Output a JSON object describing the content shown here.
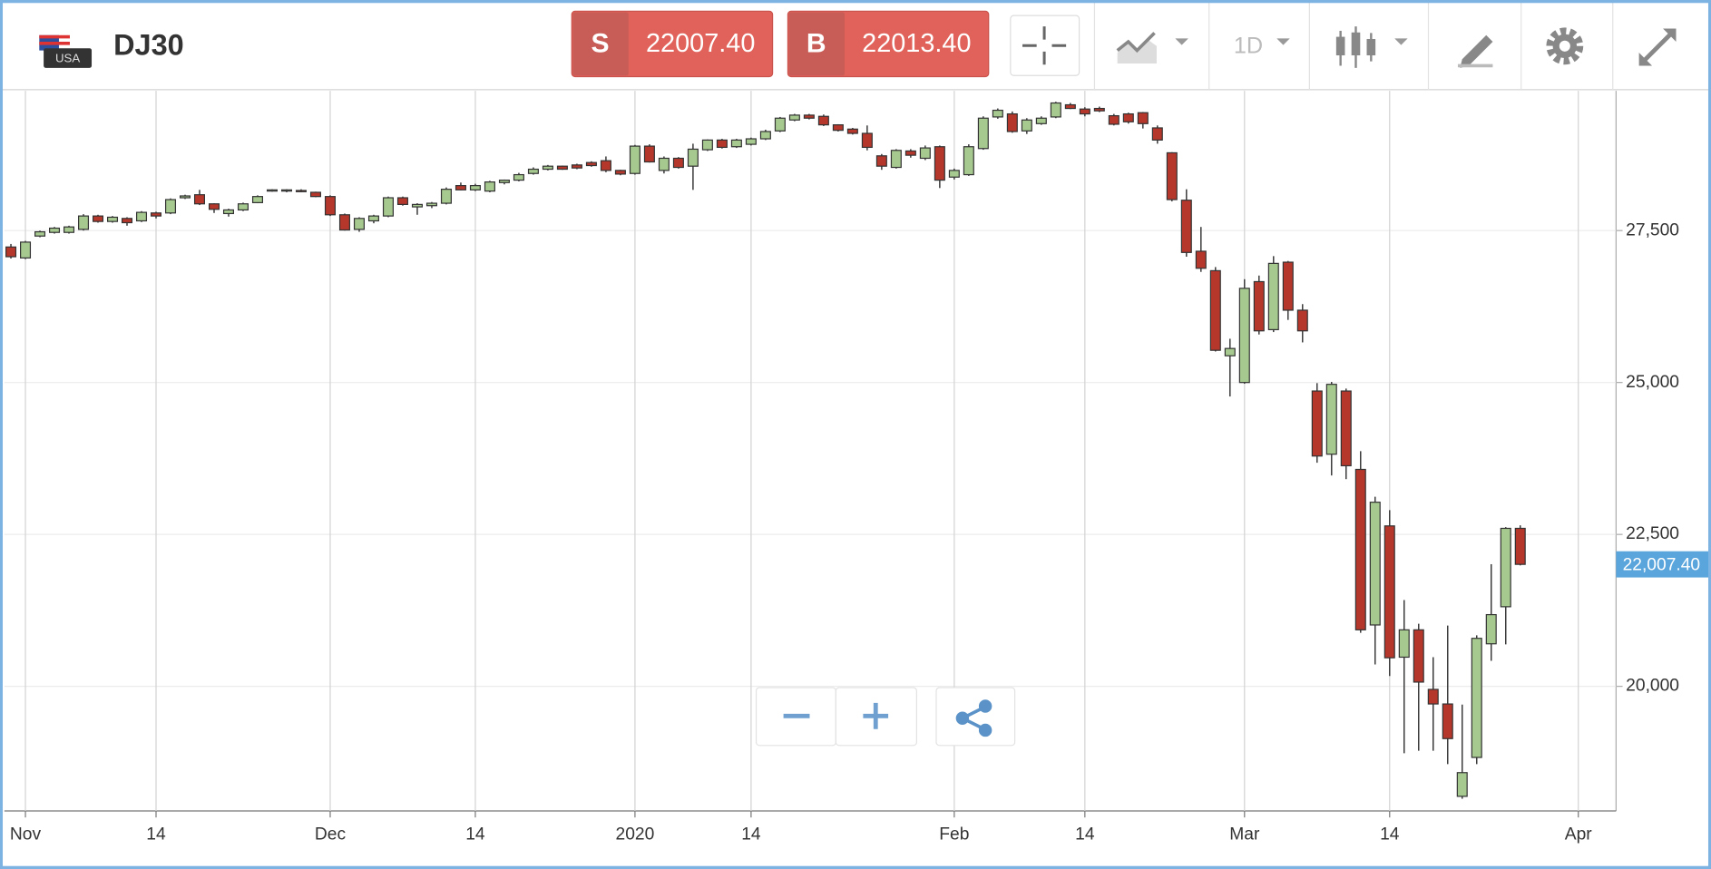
{
  "header": {
    "flag_label": "USA",
    "symbol": "DJ30",
    "sell": {
      "label": "S",
      "price": "22007.40"
    },
    "buy": {
      "label": "B",
      "price": "22013.40"
    },
    "timeframe": "1D"
  },
  "chart_data": {
    "type": "candlestick",
    "categories": [
      null,
      "Nov",
      null,
      null,
      null,
      null,
      null,
      null,
      null,
      null,
      "14",
      null,
      null,
      null,
      null,
      null,
      null,
      null,
      null,
      null,
      null,
      null,
      "Dec",
      null,
      null,
      null,
      null,
      null,
      null,
      null,
      null,
      null,
      "14",
      null,
      null,
      null,
      null,
      null,
      null,
      null,
      null,
      null,
      null,
      "2020",
      null,
      null,
      null,
      null,
      null,
      null,
      null,
      "14",
      null,
      null,
      null,
      null,
      null,
      null,
      null,
      null,
      null,
      null,
      null,
      null,
      null,
      "Feb",
      null,
      null,
      null,
      null,
      null,
      null,
      null,
      null,
      "14",
      null,
      null,
      null,
      null,
      null,
      null,
      null,
      null,
      null,
      null,
      "Mar",
      null,
      null,
      null,
      null,
      null,
      null,
      null,
      null,
      null,
      "14",
      null,
      null,
      null,
      null,
      null,
      null,
      null,
      null,
      null,
      null,
      null,
      null,
      "Apr"
    ],
    "open": [
      27230,
      27050,
      27410,
      27470,
      27470,
      27520,
      27740,
      27650,
      27700,
      27660,
      27790,
      27790,
      28040,
      28090,
      27940,
      27780,
      27840,
      27960,
      28150,
      28150,
      28160,
      28130,
      28060,
      27760,
      27520,
      27660,
      27740,
      28040,
      27890,
      27910,
      27950,
      28240,
      28170,
      28150,
      28290,
      28330,
      28440,
      28510,
      28560,
      28580,
      28620,
      28650,
      28490,
      28440,
      28890,
      28490,
      28690,
      28560,
      28830,
      28990,
      28880,
      28920,
      29010,
      29140,
      29320,
      29400,
      29380,
      29240,
      29170,
      29100,
      28730,
      28540,
      28810,
      28690,
      28880,
      28380,
      28420,
      28850,
      29370,
      29420,
      29140,
      29260,
      29370,
      29570,
      29500,
      29510,
      29390,
      29420,
      29440,
      29190,
      28780,
      28000,
      27160,
      26840,
      25440,
      25000,
      26660,
      25870,
      26980,
      26190,
      24860,
      23820,
      24860,
      23570,
      21010,
      22640,
      20480,
      20930,
      19950,
      19710,
      18190,
      18830,
      20700,
      21310,
      22600,
      null,
      null,
      null,
      null
    ],
    "high": [
      27280,
      27330,
      27500,
      27560,
      27580,
      27770,
      27760,
      27740,
      27720,
      27820,
      27810,
      28030,
      28090,
      28170,
      27950,
      27860,
      27960,
      28080,
      28180,
      28180,
      28180,
      28140,
      28080,
      27780,
      27720,
      27760,
      28060,
      28060,
      27950,
      27970,
      28210,
      28290,
      28270,
      28320,
      28340,
      28450,
      28540,
      28580,
      28570,
      28600,
      28640,
      28720,
      28500,
      28910,
      28920,
      28720,
      28710,
      28930,
      29000,
      29010,
      29010,
      29030,
      29160,
      29370,
      29420,
      29420,
      29410,
      29250,
      29190,
      29230,
      28760,
      28840,
      28840,
      28900,
      28900,
      28520,
      28920,
      29380,
      29510,
      29460,
      29350,
      29380,
      29620,
      29600,
      29530,
      29540,
      29420,
      29440,
      29450,
      29230,
      28790,
      28180,
      27560,
      26900,
      25720,
      26700,
      26760,
      27080,
      27000,
      26290,
      24990,
      25010,
      24900,
      23870,
      23120,
      22900,
      21420,
      21030,
      20480,
      21000,
      19700,
      20840,
      22010,
      22620,
      22650,
      null,
      null,
      null,
      null
    ],
    "low": [
      27040,
      27030,
      27390,
      27450,
      27450,
      27500,
      27630,
      27630,
      27580,
      27640,
      27700,
      27770,
      28020,
      27920,
      27790,
      27730,
      27820,
      27950,
      28140,
      28130,
      28130,
      28050,
      27740,
      27500,
      27480,
      27620,
      27720,
      27910,
      27760,
      27870,
      27930,
      28160,
      28150,
      28130,
      28260,
      28310,
      28420,
      28490,
      28500,
      28510,
      28550,
      28460,
      28410,
      28420,
      28620,
      28440,
      28520,
      28170,
      28810,
      28850,
      28860,
      28900,
      28990,
      29120,
      29300,
      29330,
      29220,
      29130,
      29080,
      28820,
      28500,
      28520,
      28700,
      28660,
      28200,
      28340,
      28400,
      28830,
      29340,
      29110,
      29090,
      29240,
      29350,
      29500,
      29380,
      29450,
      29230,
      29260,
      29180,
      28930,
      27980,
      27070,
      26820,
      25510,
      24770,
      24980,
      25790,
      25830,
      26030,
      25660,
      23680,
      23470,
      23410,
      20880,
      20360,
      20170,
      18900,
      18940,
      18940,
      18720,
      18150,
      18720,
      20420,
      20690,
      21990,
      null,
      null,
      null,
      null
    ],
    "close": [
      27070,
      27310,
      27480,
      27540,
      27560,
      27740,
      27650,
      27720,
      27630,
      27800,
      27740,
      28010,
      28070,
      27940,
      27850,
      27840,
      27940,
      28060,
      28170,
      28170,
      28140,
      28060,
      27760,
      27510,
      27700,
      27740,
      28040,
      27930,
      27930,
      27950,
      28180,
      28170,
      28240,
      28300,
      28330,
      28420,
      28510,
      28560,
      28510,
      28530,
      28570,
      28490,
      28430,
      28890,
      28630,
      28690,
      28540,
      28840,
      28990,
      28870,
      28990,
      29010,
      29130,
      29350,
      29400,
      29350,
      29240,
      29150,
      29100,
      28870,
      28560,
      28820,
      28740,
      28860,
      28330,
      28490,
      28880,
      29350,
      29480,
      29130,
      29320,
      29350,
      29600,
      29510,
      29420,
      29470,
      29250,
      29290,
      29260,
      28990,
      28010,
      27140,
      26880,
      25530,
      25560,
      26550,
      25850,
      26960,
      26190,
      25850,
      23790,
      24970,
      23630,
      20930,
      23030,
      20470,
      20930,
      20070,
      19710,
      19140,
      18580,
      20790,
      21180,
      22600,
      22007.4,
      null,
      null,
      null,
      null
    ],
    "up_color": "#a6c98f",
    "down_color": "#b5372c",
    "ylim": [
      17950,
      29800
    ],
    "yticks": [
      {
        "value": 20000,
        "label": "20,000"
      },
      {
        "value": 22500,
        "label": "22,500"
      },
      {
        "value": 25000,
        "label": "25,000"
      },
      {
        "value": 27500,
        "label": "27,500"
      }
    ],
    "grid": true,
    "last_price": 22007.4,
    "last_price_label": "22,007.40",
    "last_price_color": "#5aa5dc"
  }
}
